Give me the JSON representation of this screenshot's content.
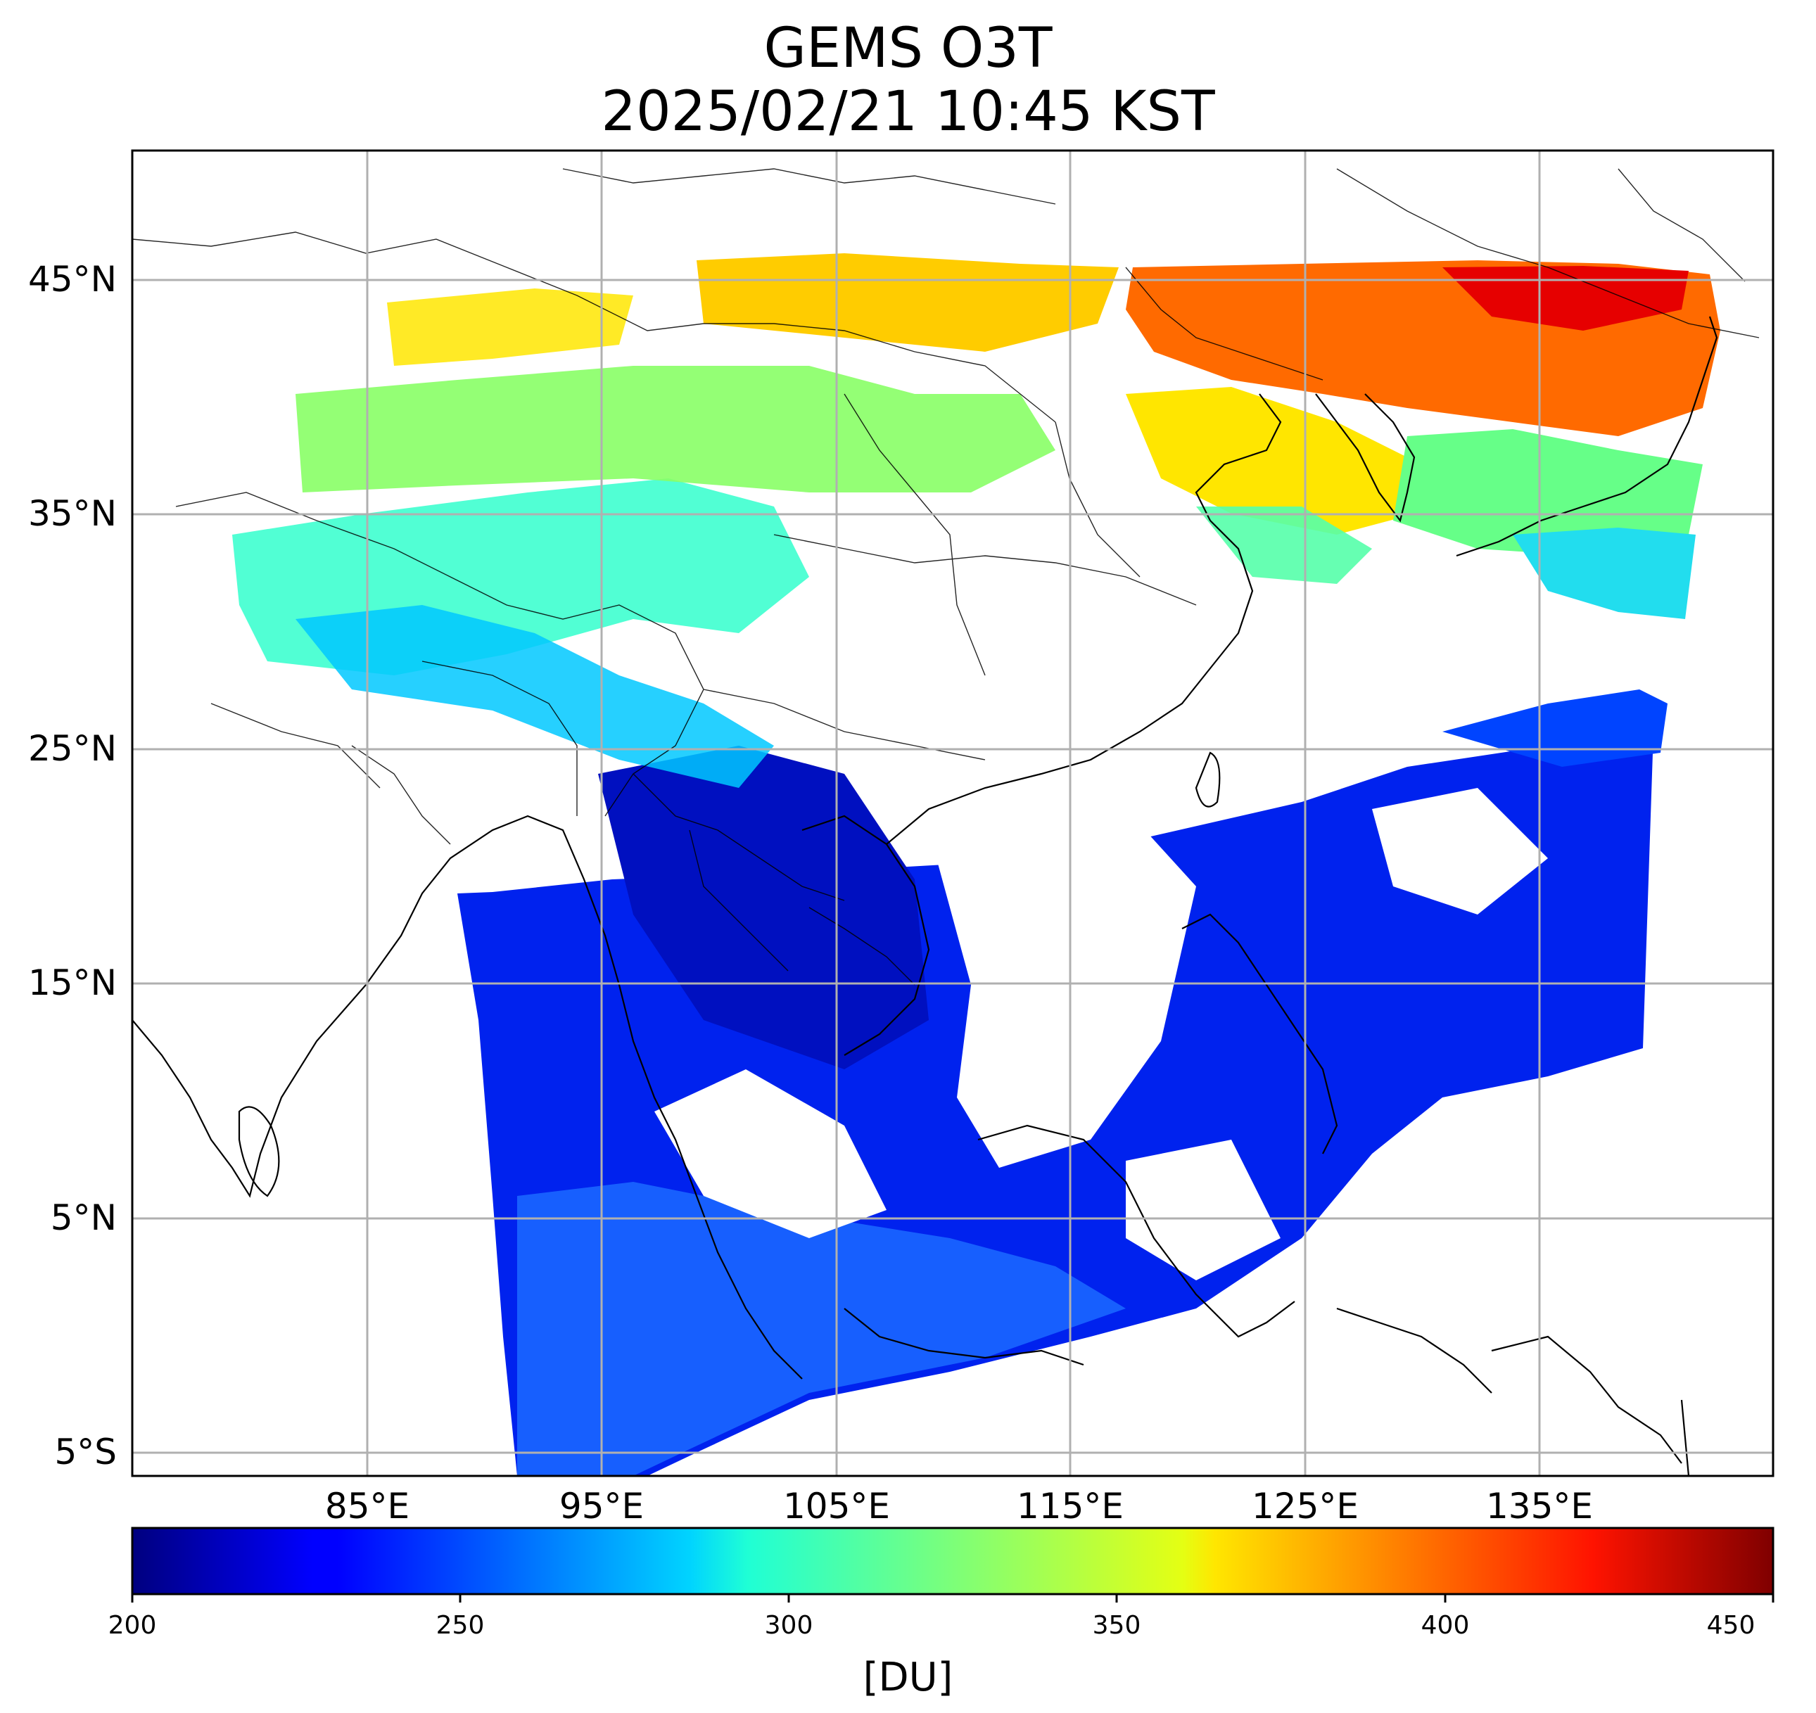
{
  "title": {
    "line1": "GEMS O3T",
    "line2": "2025/02/21 10:45 KST"
  },
  "map": {
    "lat_ticks": [
      "45°N",
      "35°N",
      "25°N",
      "15°N",
      "5°N",
      "5°S"
    ],
    "lon_ticks": [
      "85°E",
      "95°E",
      "105°E",
      "115°E",
      "125°E",
      "135°E"
    ],
    "lon_range": [
      75,
      145
    ],
    "lat_range": [
      -6,
      50.5
    ],
    "grid": true
  },
  "colorbar": {
    "ticks": [
      "200",
      "250",
      "300",
      "350",
      "400",
      "450"
    ],
    "range": [
      200,
      450
    ],
    "label": "[DU]",
    "colormap": "jet"
  },
  "colors": {
    "low": "#0000cc",
    "mid": "#33ffcc",
    "high": "#ff3300",
    "grid": "#b0b0b0",
    "coast": "#000000"
  }
}
